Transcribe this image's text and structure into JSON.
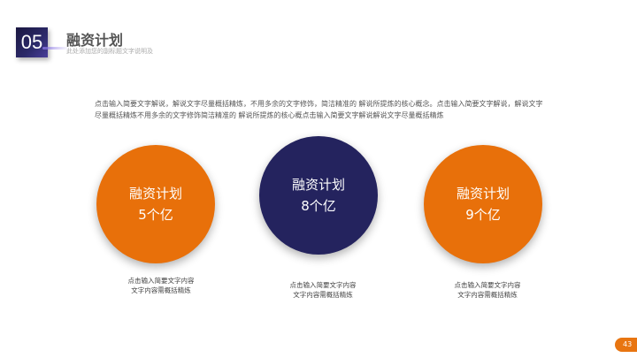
{
  "header": {
    "number": "05",
    "title": "融资计划",
    "subtitle": "此处添加您的副标题文字说明及"
  },
  "description": "点击输入简要文字解说，解说文字尽量概括精炼，不用多余的文字修饰，简洁精准的 解说所提炼的核心概念。点击输入简要文字解说，解说文字尽量概括精炼不用多余的文字修饰简洁精准的 解说所提炼的核心概点击输入简要文字解说解说文字尽量概括精炼",
  "colors": {
    "orange": "#e8700a",
    "navy": "#24235e"
  },
  "items": [
    {
      "title": "融资计划",
      "value": "5个亿",
      "caption1": "点击输入简要文字内容",
      "caption2": "文字内容需概括精炼",
      "color": "#e8700a"
    },
    {
      "title": "融资计划",
      "value": "8个亿",
      "caption1": "点击输入简要文字内容",
      "caption2": "文字内容需概括精炼",
      "color": "#24235e"
    },
    {
      "title": "融资计划",
      "value": "9个亿",
      "caption1": "点击输入简要文字内容",
      "caption2": "文字内容需概括精炼",
      "color": "#e8700a"
    }
  ],
  "page_number": "43"
}
